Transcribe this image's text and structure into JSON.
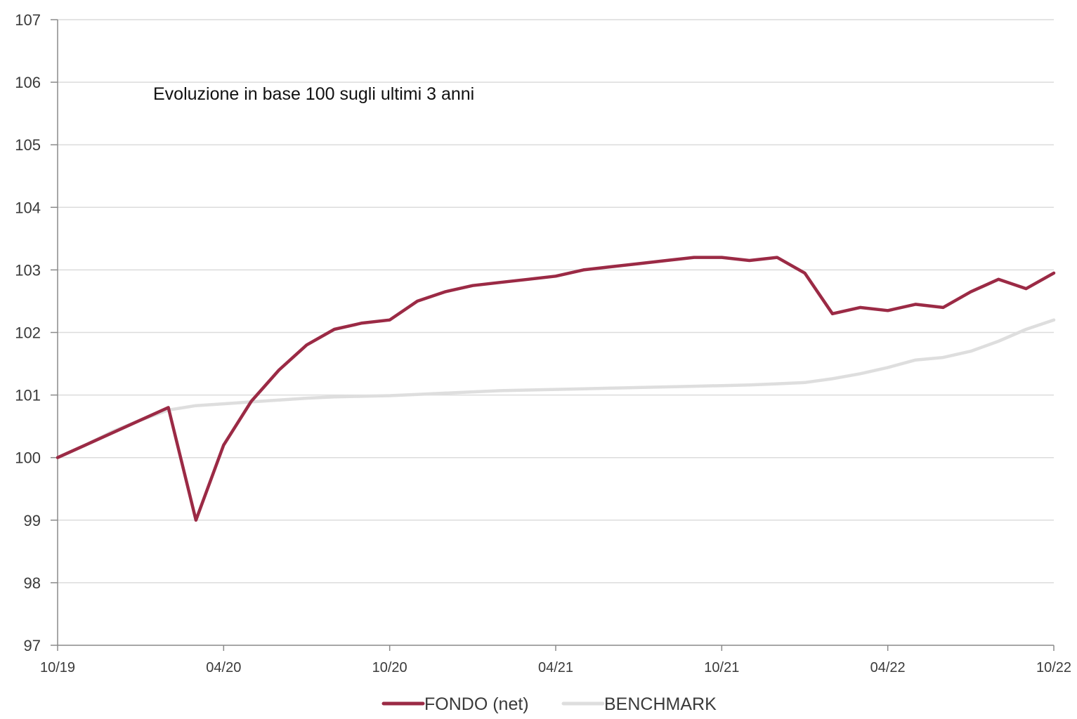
{
  "chart_data": {
    "type": "line",
    "title": "",
    "annotation": "Evoluzione in base 100 sugli ultimi 3 anni",
    "xlabel": "",
    "ylabel": "",
    "ylim": [
      97,
      107
    ],
    "yticks": [
      "97",
      "98",
      "99",
      "100",
      "101",
      "102",
      "103",
      "104",
      "105",
      "106",
      "107"
    ],
    "xticks": [
      "10/19",
      "04/20",
      "10/20",
      "04/21",
      "10/21",
      "04/22",
      "10/22"
    ],
    "grid": "horizontal",
    "legend_position": "bottom-center",
    "colors": {
      "fondo": "#9b2a45",
      "benchmark": "#dedede",
      "grid": "#dcdcdc",
      "axis": "#8a8a8a"
    },
    "x": [
      "10/19",
      "11/19",
      "12/19",
      "01/20",
      "02/20",
      "03/20",
      "04/20",
      "05/20",
      "06/20",
      "07/20",
      "08/20",
      "09/20",
      "10/20",
      "11/20",
      "12/20",
      "01/21",
      "02/21",
      "03/21",
      "04/21",
      "05/21",
      "06/21",
      "07/21",
      "08/21",
      "09/21",
      "10/21",
      "11/21",
      "12/21",
      "01/22",
      "02/22",
      "03/22",
      "04/22",
      "05/22",
      "06/22",
      "07/22",
      "08/22",
      "09/22",
      "10/22"
    ],
    "series": [
      {
        "name": "FONDO (net)",
        "values": [
          100.0,
          100.2,
          100.4,
          100.6,
          100.8,
          99.0,
          100.2,
          100.9,
          101.4,
          101.8,
          102.05,
          102.15,
          102.2,
          102.5,
          102.65,
          102.75,
          102.8,
          102.85,
          102.9,
          103.0,
          103.05,
          103.1,
          103.15,
          103.2,
          103.2,
          103.15,
          103.2,
          102.95,
          102.3,
          102.4,
          102.35,
          102.45,
          102.4,
          102.65,
          102.85,
          102.7,
          102.95
        ]
      },
      {
        "name": "BENCHMARK",
        "values": [
          100.0,
          100.2,
          100.42,
          100.6,
          100.76,
          100.83,
          100.86,
          100.89,
          100.92,
          100.95,
          100.97,
          100.98,
          100.99,
          101.01,
          101.03,
          101.05,
          101.07,
          101.08,
          101.09,
          101.1,
          101.11,
          101.12,
          101.13,
          101.14,
          101.15,
          101.16,
          101.18,
          101.2,
          101.26,
          101.34,
          101.44,
          101.56,
          101.6,
          101.7,
          101.86,
          102.05,
          102.2
        ]
      }
    ]
  }
}
